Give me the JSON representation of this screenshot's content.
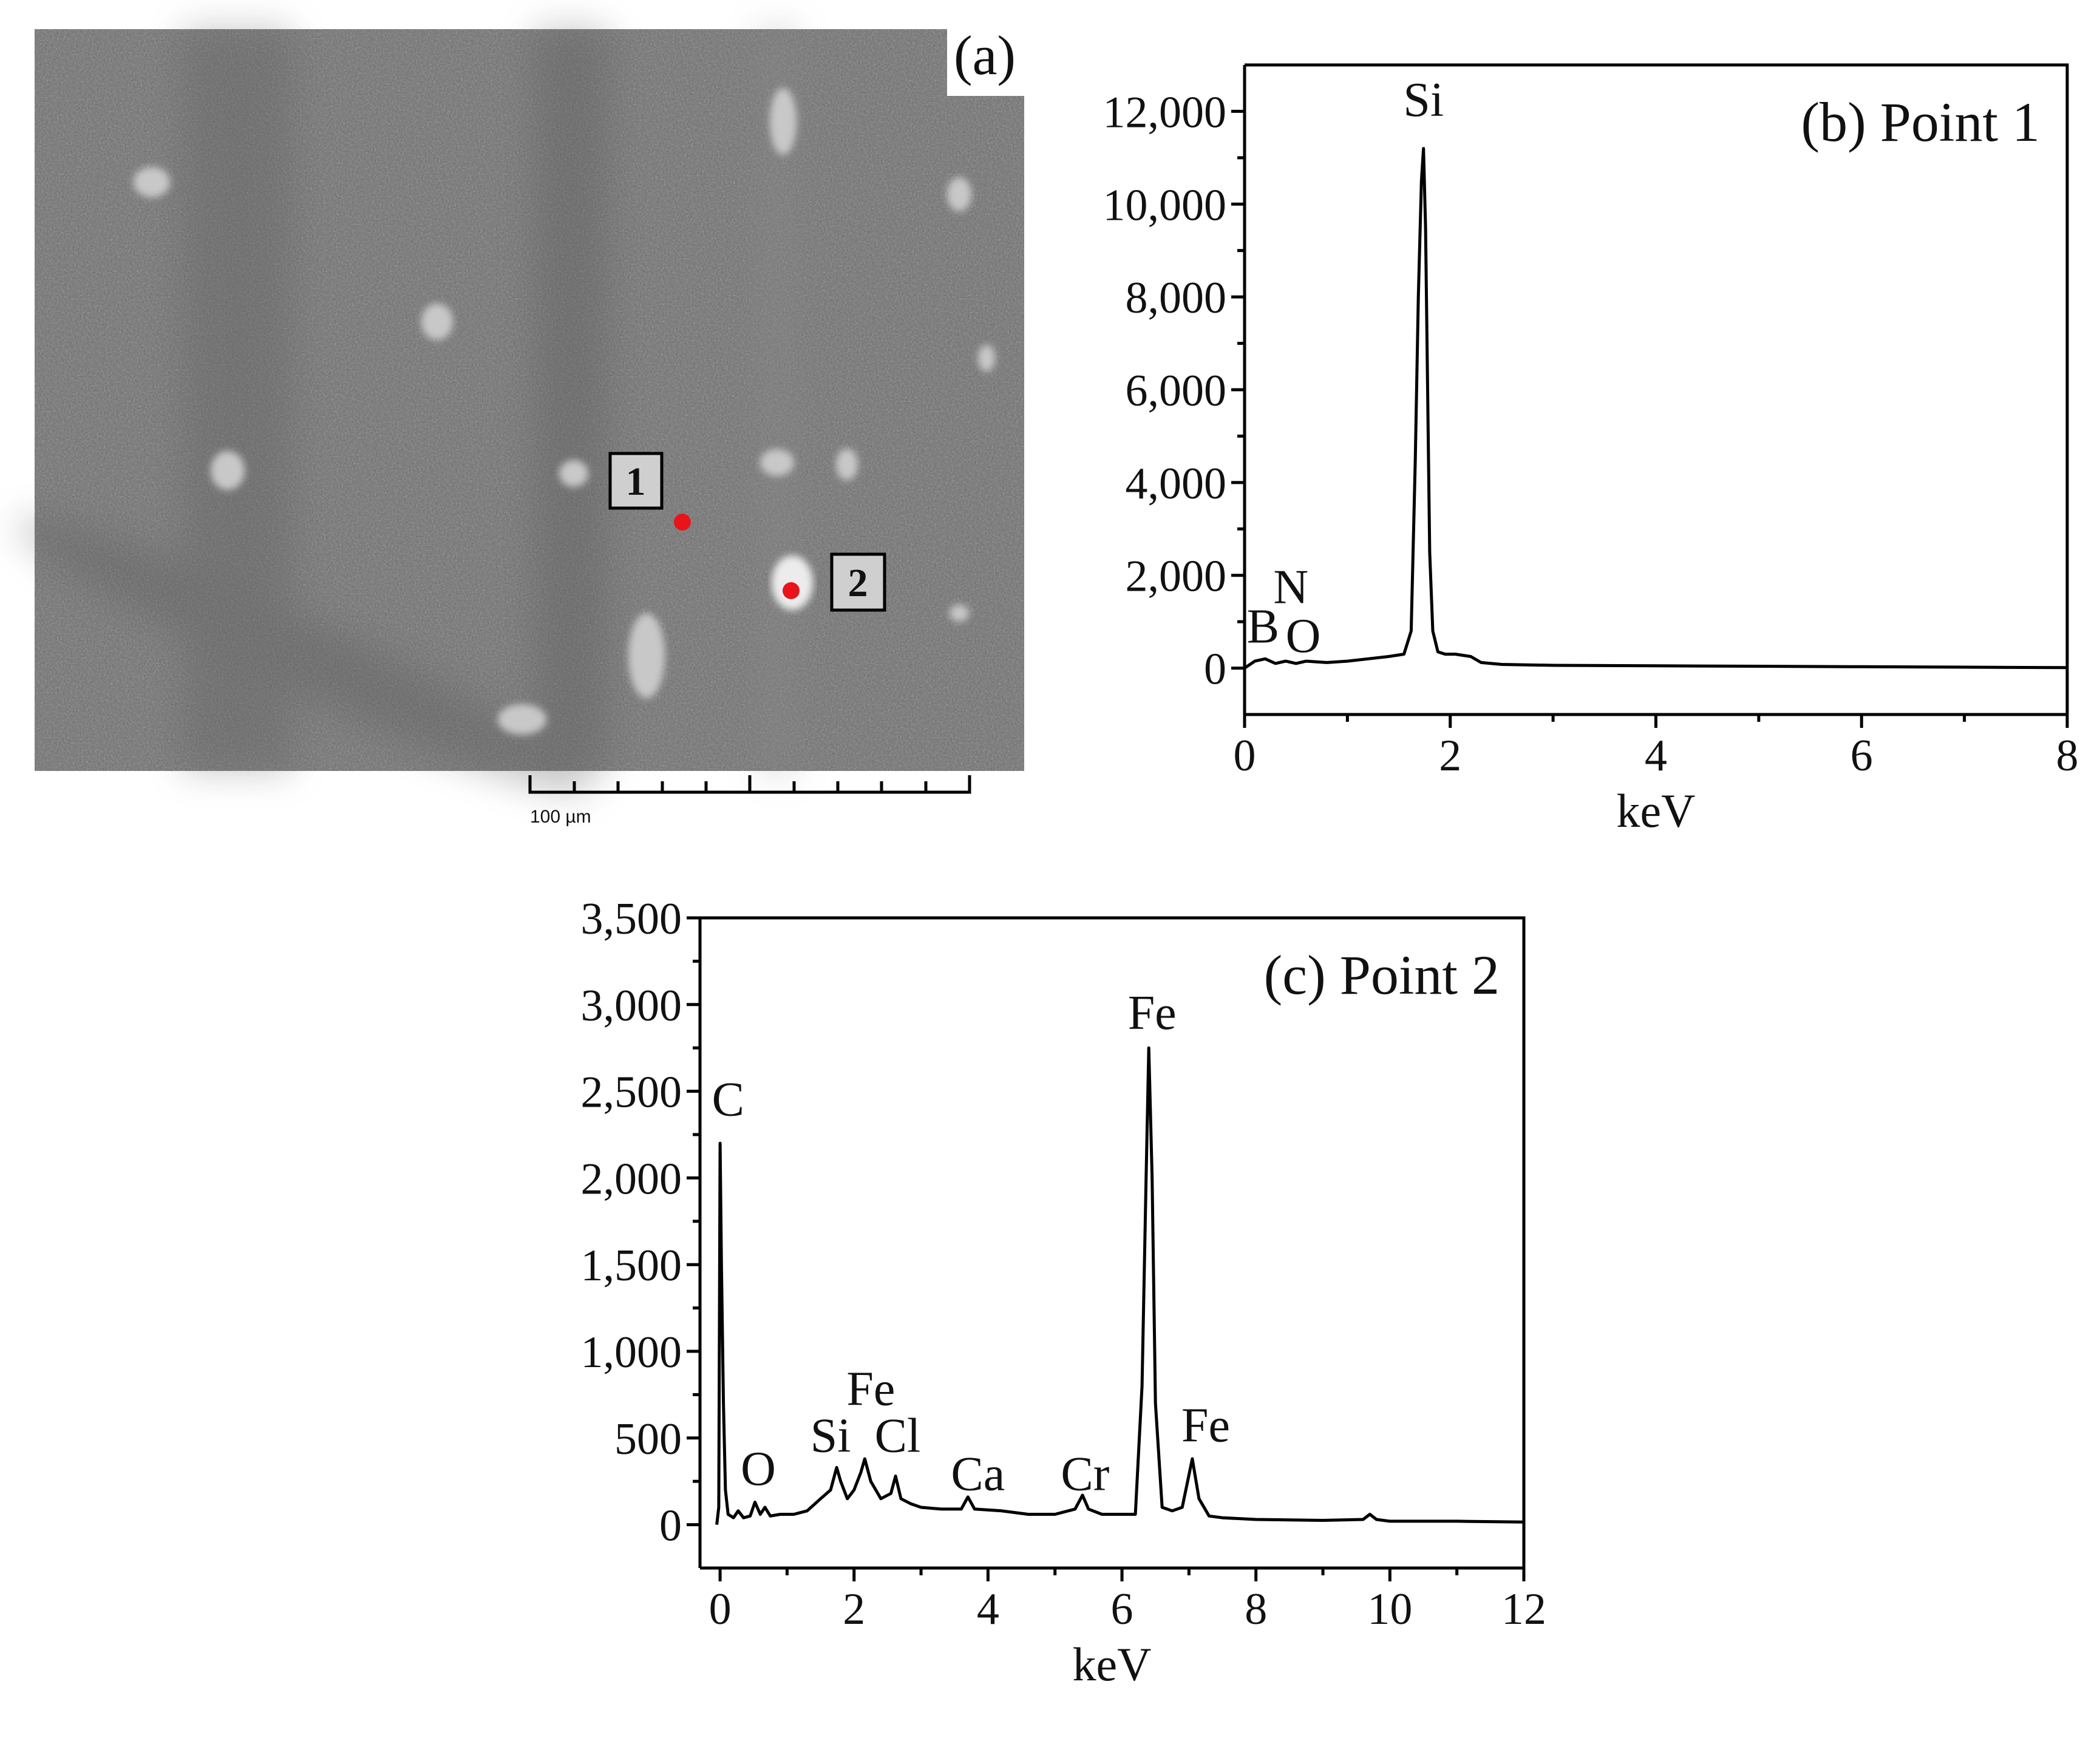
{
  "micrograph": {
    "panel_label": "(a)",
    "scale_bar_label": "100 µm",
    "points": [
      {
        "label": "1",
        "marker_color": "#e8141a"
      },
      {
        "label": "2",
        "marker_color": "#e8141a"
      }
    ]
  },
  "chart_data": [
    {
      "type": "line",
      "title": "(b) Point 1",
      "xlabel": "keV",
      "ylabel": "",
      "xlim": [
        0,
        8
      ],
      "ylim": [
        -1000,
        13000
      ],
      "x_ticks": [
        0,
        2,
        4,
        6,
        8
      ],
      "x_tick_labels": [
        "0",
        "2",
        "4",
        "6",
        "8"
      ],
      "y_ticks": [
        0,
        2000,
        4000,
        6000,
        8000,
        10000,
        12000
      ],
      "y_tick_labels": [
        "0",
        "2,000",
        "4,000",
        "6,000",
        "8,000",
        "10,000",
        "12,000"
      ],
      "series": [
        {
          "x": [
            0,
            0.1,
            0.2,
            0.3,
            0.4,
            0.5,
            0.6,
            0.8,
            1.0,
            1.2,
            1.4,
            1.55,
            1.62,
            1.66,
            1.69,
            1.72,
            1.74,
            1.76,
            1.78,
            1.8,
            1.83,
            1.88,
            1.95,
            2.05,
            2.2,
            2.3,
            2.5,
            3,
            4,
            5,
            6,
            7,
            8
          ],
          "y": [
            0,
            150,
            200,
            100,
            150,
            100,
            150,
            120,
            150,
            200,
            250,
            300,
            800,
            4500,
            8000,
            10500,
            11200,
            9500,
            6000,
            2500,
            800,
            350,
            300,
            300,
            250,
            120,
            80,
            60,
            50,
            40,
            30,
            20,
            10
          ]
        }
      ],
      "annotations": [
        {
          "text": "Si",
          "x": 1.74,
          "y": 11900
        },
        {
          "text": "N",
          "x": 0.45,
          "y": 1400
        },
        {
          "text": "B",
          "x": 0.18,
          "y": 550
        },
        {
          "text": "O",
          "x": 0.57,
          "y": 350
        }
      ]
    },
    {
      "type": "line",
      "title": "(c) Point 2",
      "xlabel": "keV",
      "ylabel": "",
      "xlim": [
        -0.3,
        12
      ],
      "ylim": [
        -250,
        3500
      ],
      "x_ticks": [
        0,
        2,
        4,
        6,
        8,
        10,
        12
      ],
      "x_tick_labels": [
        "0",
        "2",
        "4",
        "6",
        "8",
        "10",
        "12"
      ],
      "y_ticks": [
        0,
        500,
        1000,
        1500,
        2000,
        2500,
        3000,
        3500
      ],
      "y_tick_labels": [
        "0",
        "500",
        "1,000",
        "1,500",
        "2,000",
        "2,500",
        "3,000",
        "3,500"
      ],
      "series": [
        {
          "x": [
            -0.05,
            -0.02,
            0.0,
            0.02,
            0.05,
            0.08,
            0.12,
            0.2,
            0.27,
            0.35,
            0.45,
            0.52,
            0.6,
            0.67,
            0.75,
            0.9,
            1.1,
            1.3,
            1.5,
            1.65,
            1.74,
            1.8,
            1.9,
            2.0,
            2.1,
            2.16,
            2.25,
            2.4,
            2.55,
            2.62,
            2.7,
            2.85,
            3.0,
            3.3,
            3.6,
            3.7,
            3.8,
            4.2,
            4.6,
            5.0,
            5.3,
            5.41,
            5.5,
            5.7,
            6.0,
            6.2,
            6.3,
            6.36,
            6.4,
            6.45,
            6.5,
            6.6,
            6.75,
            6.9,
            7.05,
            7.15,
            7.3,
            7.5,
            8,
            9,
            9.6,
            9.7,
            9.8,
            10,
            11,
            12
          ],
          "y": [
            0,
            100,
            2200,
            1500,
            700,
            200,
            60,
            40,
            80,
            40,
            50,
            130,
            60,
            100,
            50,
            60,
            60,
            80,
            150,
            200,
            330,
            250,
            150,
            200,
            300,
            380,
            250,
            150,
            180,
            280,
            150,
            120,
            100,
            90,
            90,
            160,
            90,
            80,
            60,
            60,
            90,
            170,
            90,
            60,
            60,
            60,
            800,
            2000,
            2750,
            2000,
            700,
            100,
            80,
            100,
            380,
            150,
            50,
            40,
            30,
            25,
            30,
            60,
            30,
            20,
            20,
            15
          ]
        }
      ],
      "annotations": [
        {
          "text": "C",
          "x": 0.12,
          "y": 2360
        },
        {
          "text": "O",
          "x": 0.57,
          "y": 230
        },
        {
          "text": "Si",
          "x": 1.65,
          "y": 420
        },
        {
          "text": "Fe",
          "x": 2.25,
          "y": 690
        },
        {
          "text": "Cl",
          "x": 2.65,
          "y": 420
        },
        {
          "text": "Ca",
          "x": 3.85,
          "y": 200
        },
        {
          "text": "Cr",
          "x": 5.45,
          "y": 200
        },
        {
          "text": "Fe",
          "x": 6.45,
          "y": 2860
        },
        {
          "text": "Fe",
          "x": 7.25,
          "y": 480
        }
      ]
    }
  ]
}
